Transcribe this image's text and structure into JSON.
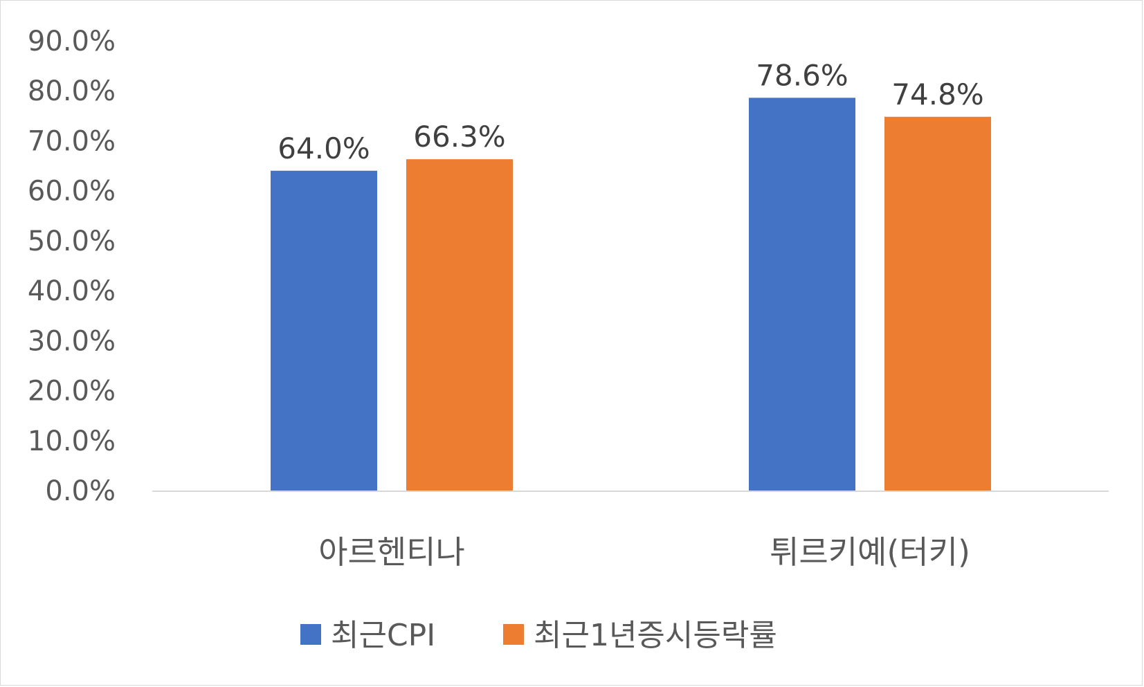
{
  "chart_data": {
    "type": "bar",
    "categories": [
      "아르헨티나",
      "튀르키예(터키)"
    ],
    "series": [
      {
        "name": "최근CPI",
        "values": [
          64.0,
          78.6
        ],
        "labels": [
          "64.0%",
          "78.6%"
        ],
        "color": "#4472C4"
      },
      {
        "name": "최근1년증시등락률",
        "values": [
          66.3,
          74.8
        ],
        "labels": [
          "66.3%",
          "74.8%"
        ],
        "color": "#ED7D31"
      }
    ],
    "ylim": [
      0,
      90
    ],
    "yticks": [
      "0.0%",
      "10.0%",
      "20.0%",
      "30.0%",
      "40.0%",
      "50.0%",
      "60.0%",
      "70.0%",
      "80.0%",
      "90.0%"
    ],
    "grid": false,
    "legend_position": "bottom",
    "axis_color": "#d9d9d9"
  }
}
